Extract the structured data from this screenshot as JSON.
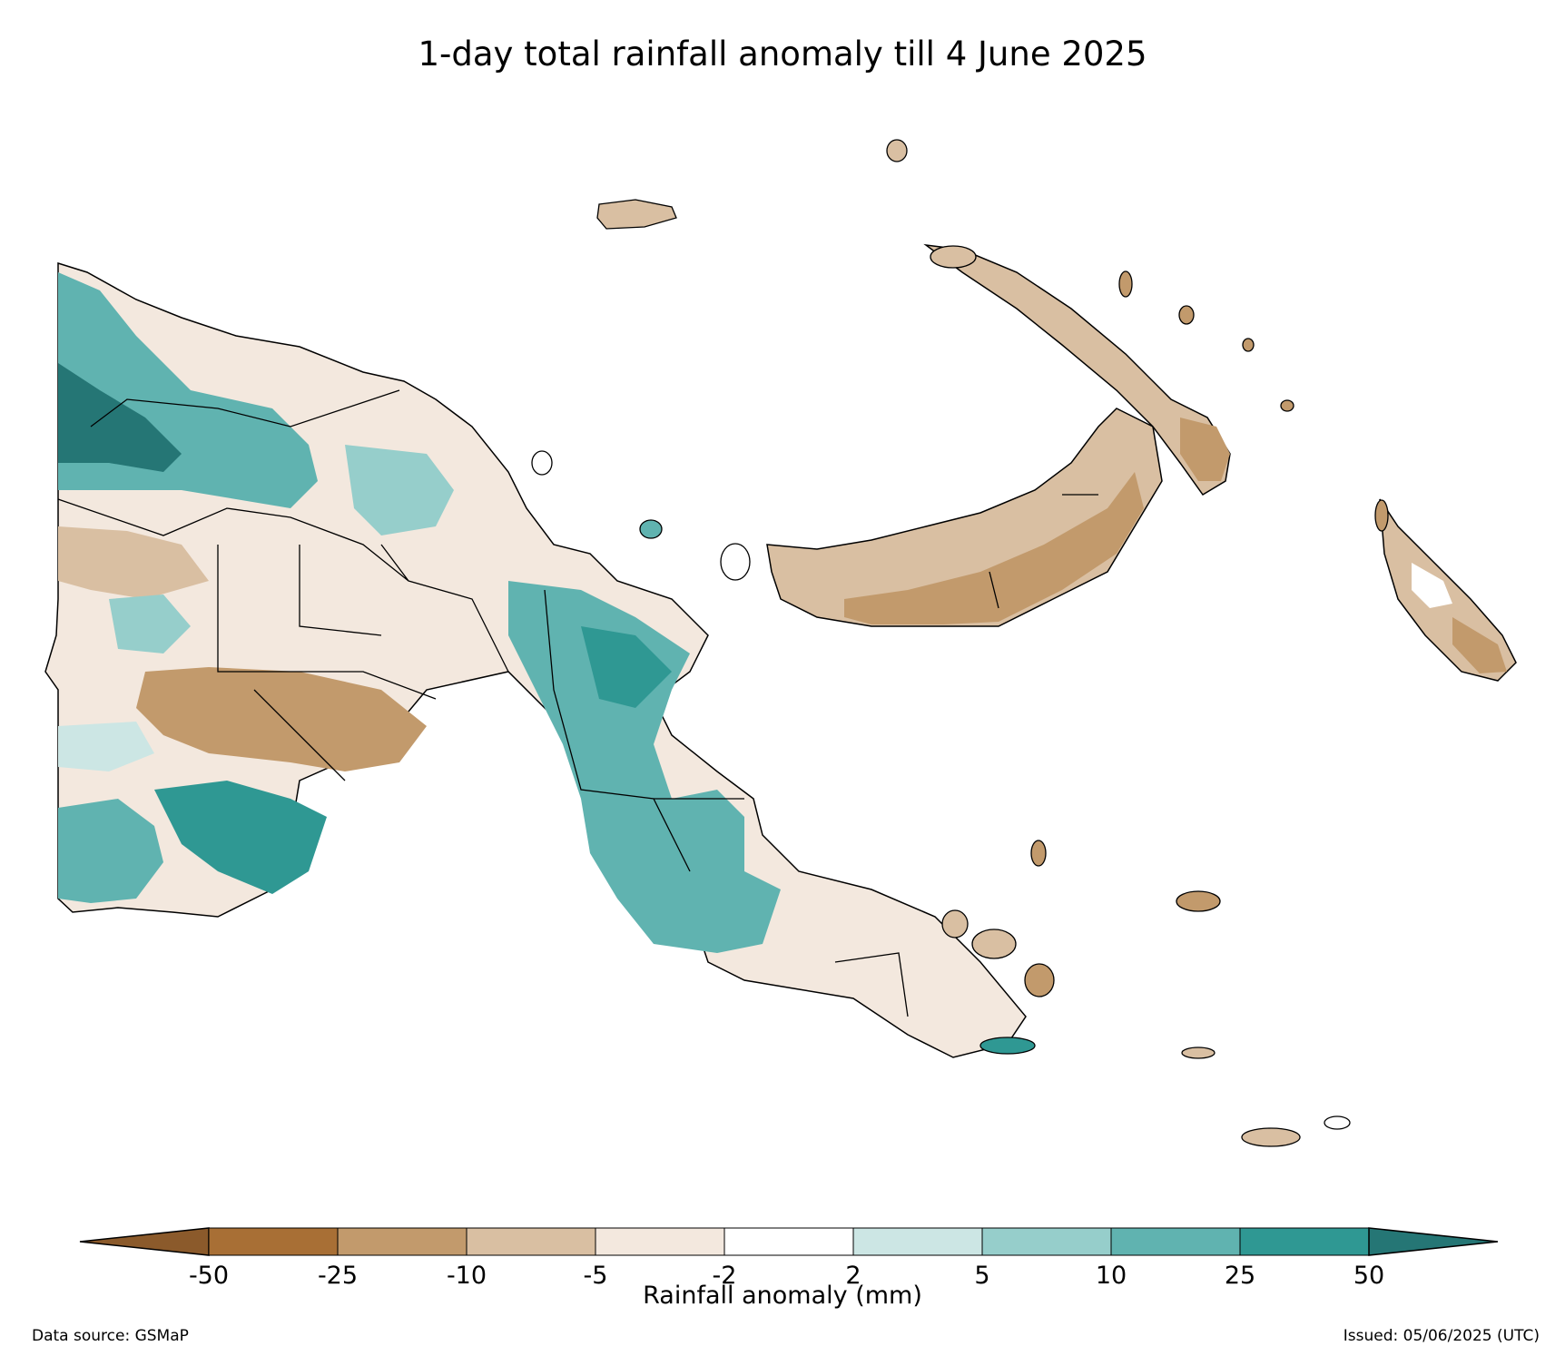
{
  "title": "1-day total rainfall anomaly till 4 June 2025",
  "colorbar": {
    "label": "Rainfall anomaly (mm)",
    "ticks": [
      "-50",
      "-25",
      "-10",
      "-5",
      "-2",
      "2",
      "5",
      "10",
      "25",
      "50"
    ],
    "colors": {
      "extend_low": "#8b5a2b",
      "lt_-50": "#a86f35",
      "-50_-25": "#c29a6c",
      "-25_-10": "#d9bfa2",
      "-10_-5": "#ebd9c7",
      "-5_-2": "#f3e8de",
      "-2_2": "#ffffff",
      "2_5": "#cce6e4",
      "5_10": "#96cecb",
      "10_25": "#60b3b0",
      "25_50": "#2f9893",
      "gt_50": "#257675"
    }
  },
  "footer": {
    "source": "Data source: GSMaP",
    "issued": "Issued: 05/06/2025 (UTC)"
  }
}
